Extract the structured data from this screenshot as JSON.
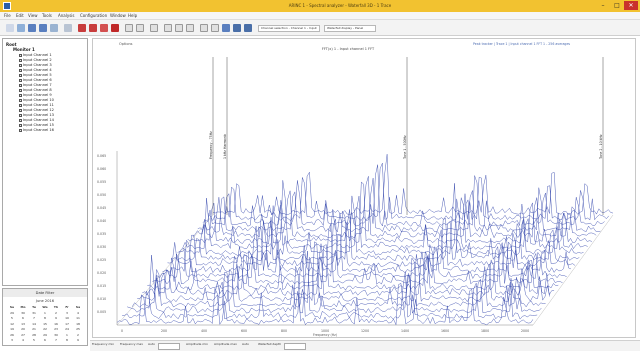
{
  "window": {
    "title": "ARINC 1 - Spectral analyzer - Waterfall 3D - 1 Trace",
    "minimize": "–",
    "maximize": "□",
    "close": "✕"
  },
  "menu": [
    "File",
    "Edit",
    "View",
    "Tools",
    "Analysis",
    "Configuration",
    "Window",
    "Help"
  ],
  "toolbar": {
    "tab_chips": [
      "Channel selection - Channel 1 - Input",
      "Waterfall display - Panel"
    ]
  },
  "tree": {
    "root_label": "Root",
    "group_label": "Monitor 1",
    "items": [
      "Input Channel 1",
      "Input Channel 2",
      "Input Channel 3",
      "Input Channel 4",
      "Input Channel 5",
      "Input Channel 6",
      "Input Channel 7",
      "Input Channel 8",
      "Input Channel 9",
      "Input Channel 10",
      "Input Channel 11",
      "Input Channel 12",
      "Input Channel 13",
      "Input Channel 14",
      "Input Channel 15",
      "Input Channel 16"
    ]
  },
  "calendar": {
    "header": "Date Filter",
    "month": "June 2016",
    "days_header": [
      "Su",
      "Mo",
      "Tu",
      "We",
      "Th",
      "Fr",
      "Sa"
    ],
    "weeks": [
      [
        "29",
        "30",
        "31",
        "1",
        "2",
        "3",
        "4"
      ],
      [
        "5",
        "6",
        "7",
        "8",
        "9",
        "10",
        "11"
      ],
      [
        "12",
        "13",
        "14",
        "15",
        "16",
        "17",
        "18"
      ],
      [
        "19",
        "20",
        "21",
        "22",
        "23",
        "24",
        "25"
      ],
      [
        "26",
        "27",
        "28",
        "29",
        "30",
        "1",
        "2"
      ],
      [
        "3",
        "4",
        "5",
        "6",
        "7",
        "8",
        "9"
      ]
    ]
  },
  "plot": {
    "caption": "Options",
    "title": "FFT(x) 1 - Input channel 1 FFT",
    "legend": "Peak tracker  |  Trace 1  |  Input channel 1 FFT 1 - 256 averages",
    "xlabel": "Frequency (Hz)",
    "trace_color": "#2a3ea8",
    "marker_color": "#222222",
    "marker_labels": [
      "Frequency - 75Hz",
      "1 kHz Harmonic",
      "Tone 1 - 500Hz",
      "Tone 2 - 10 kHz"
    ],
    "y_ticks": [
      "0.065",
      "0.060",
      "0.055",
      "0.050",
      "0.045",
      "0.040",
      "0.035",
      "0.030",
      "0.025",
      "0.020",
      "0.015",
      "0.010",
      "0.005"
    ],
    "x_ticks": [
      "0",
      "200",
      "400",
      "600",
      "800",
      "1000",
      "1200",
      "1400",
      "1600",
      "1800",
      "2000"
    ]
  },
  "bottom": {
    "labels": [
      "Frequency min",
      "Frequency max",
      "Auto",
      "Amplitude min",
      "Amplitude max",
      "Auto",
      "Waterfall depth"
    ]
  }
}
